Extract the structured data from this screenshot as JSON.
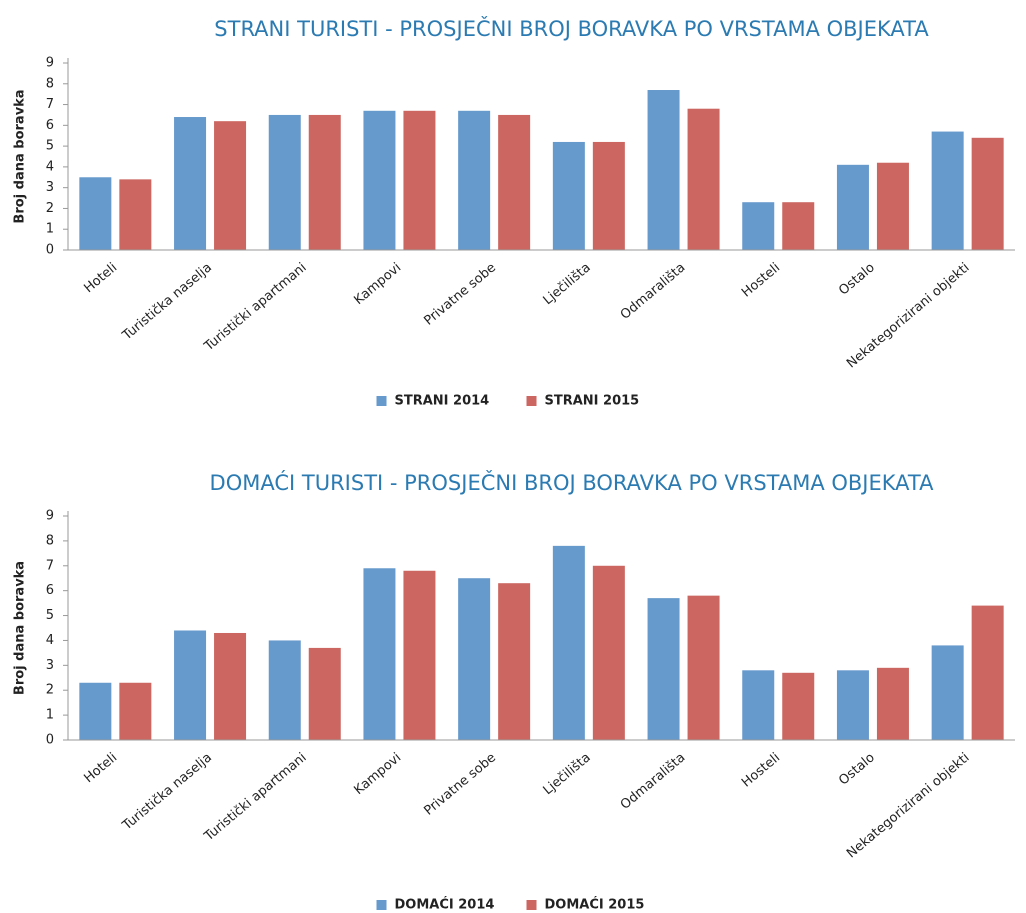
{
  "chart_data": [
    {
      "type": "bar",
      "title": "STRANI TURISTI - PROSJEČNI BROJ BORAVKA PO VRSTAMA OBJEKATA",
      "ylabel": "Broj dana boravka",
      "categories": [
        "Hoteli",
        "Turistička naselja",
        "Turistički apartmani",
        "Kampovi",
        "Privatne sobe",
        "Lječilišta",
        "Odmarališta",
        "Hosteli",
        "Ostalo",
        "Nekategorizirani objekti"
      ],
      "series": [
        {
          "name": "STRANI 2014",
          "color": "#6699cc",
          "values": [
            3.5,
            6.4,
            6.5,
            6.7,
            6.7,
            5.2,
            7.7,
            2.3,
            4.1,
            5.7
          ]
        },
        {
          "name": "STRANI 2015",
          "color": "#cc6661",
          "values": [
            3.4,
            6.2,
            6.5,
            6.7,
            6.5,
            5.2,
            6.8,
            2.3,
            4.2,
            5.4
          ]
        }
      ],
      "ylim": [
        0,
        9
      ],
      "yticks": [
        0,
        1,
        2,
        3,
        4,
        5,
        6,
        7,
        8,
        9
      ],
      "grid": false,
      "legend": "bottom"
    },
    {
      "type": "bar",
      "title": "DOMAĆI TURISTI - PROSJEČNI BROJ BORAVKA PO VRSTAMA OBJEKATA",
      "ylabel": "Broj dana boravka",
      "categories": [
        "Hoteli",
        "Turistička naselja",
        "Turistički apartmani",
        "Kampovi",
        "Privatne sobe",
        "Lječilišta",
        "Odmarališta",
        "Hosteli",
        "Ostalo",
        "Nekategorizirani objekti"
      ],
      "series": [
        {
          "name": "DOMAĆI 2014",
          "color": "#6699cc",
          "values": [
            2.3,
            4.4,
            4.0,
            6.9,
            6.5,
            7.8,
            5.7,
            2.8,
            2.8,
            3.8
          ]
        },
        {
          "name": "DOMAĆI 2015",
          "color": "#cc6661",
          "values": [
            2.3,
            4.3,
            3.7,
            6.8,
            6.3,
            7.0,
            5.8,
            2.7,
            2.9,
            5.4
          ]
        }
      ],
      "ylim": [
        0,
        9
      ],
      "yticks": [
        0,
        1,
        2,
        3,
        4,
        5,
        6,
        7,
        8,
        9
      ],
      "grid": false,
      "legend": "bottom"
    }
  ]
}
